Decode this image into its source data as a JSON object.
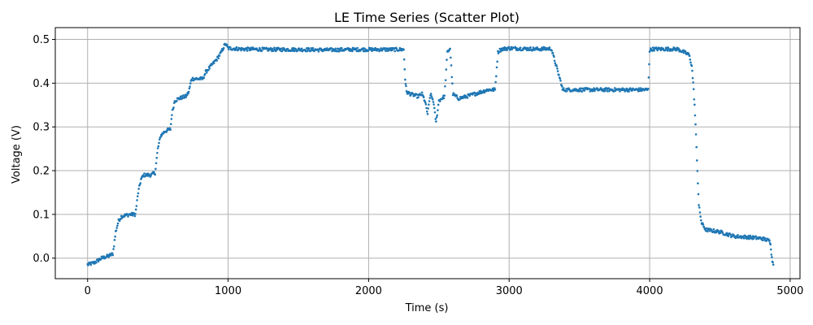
{
  "chart_data": {
    "type": "scatter",
    "title": "LE Time Series (Scatter Plot)",
    "xlabel": "Time (s)",
    "ylabel": "Voltage (V)",
    "xlim": [
      -230,
      5070
    ],
    "ylim": [
      -0.047,
      0.527
    ],
    "xticks": [
      0,
      1000,
      2000,
      3000,
      4000,
      5000
    ],
    "yticks": [
      0.0,
      0.1,
      0.2,
      0.3,
      0.4,
      0.5
    ],
    "xtick_labels": [
      "0",
      "1000",
      "2000",
      "3000",
      "4000",
      "5000"
    ],
    "ytick_labels": [
      "0.0",
      "0.1",
      "0.2",
      "0.3",
      "0.4",
      "0.5"
    ],
    "grid": true,
    "color": "#1f77b4",
    "series": [
      {
        "x": [
          0,
          50,
          100,
          150,
          180,
          200,
          220,
          240,
          260,
          300,
          340,
          360,
          380,
          400,
          450,
          480,
          500,
          520,
          550,
          590,
          600,
          620,
          650,
          700,
          720,
          740,
          780,
          820,
          840,
          880,
          920,
          950,
          980,
          1000,
          1100,
          1300,
          1500,
          1700,
          1900,
          2100,
          2250,
          2260,
          2270,
          2300,
          2350,
          2380,
          2400,
          2420,
          2440,
          2460,
          2480,
          2500,
          2540,
          2560,
          2580,
          2600,
          2640,
          2700,
          2750,
          2800,
          2850,
          2900,
          2920,
          2930,
          2950,
          3000,
          3100,
          3200,
          3300,
          3370,
          3380,
          3400,
          3500,
          3600,
          3700,
          3800,
          3900,
          3990,
          4000,
          4020,
          4100,
          4200,
          4250,
          4280,
          4300,
          4310,
          4320,
          4330,
          4340,
          4350,
          4370,
          4400,
          4500,
          4600,
          4700,
          4800,
          4850,
          4860,
          4870,
          4880
        ],
        "y": [
          -0.015,
          -0.01,
          0.0,
          0.005,
          0.01,
          0.06,
          0.085,
          0.095,
          0.097,
          0.1,
          0.1,
          0.15,
          0.18,
          0.19,
          0.19,
          0.195,
          0.25,
          0.28,
          0.29,
          0.295,
          0.33,
          0.36,
          0.365,
          0.37,
          0.38,
          0.41,
          0.41,
          0.41,
          0.425,
          0.44,
          0.455,
          0.47,
          0.49,
          0.48,
          0.478,
          0.477,
          0.477,
          0.476,
          0.477,
          0.477,
          0.477,
          0.41,
          0.38,
          0.375,
          0.37,
          0.375,
          0.36,
          0.33,
          0.375,
          0.36,
          0.31,
          0.36,
          0.37,
          0.47,
          0.48,
          0.375,
          0.365,
          0.37,
          0.375,
          0.38,
          0.385,
          0.385,
          0.47,
          0.475,
          0.478,
          0.48,
          0.479,
          0.478,
          0.479,
          0.4,
          0.385,
          0.385,
          0.385,
          0.385,
          0.385,
          0.385,
          0.385,
          0.385,
          0.475,
          0.478,
          0.478,
          0.478,
          0.47,
          0.465,
          0.44,
          0.4,
          0.35,
          0.28,
          0.2,
          0.12,
          0.08,
          0.065,
          0.06,
          0.05,
          0.048,
          0.045,
          0.04,
          0.035,
          0.0,
          -0.015
        ]
      }
    ]
  }
}
